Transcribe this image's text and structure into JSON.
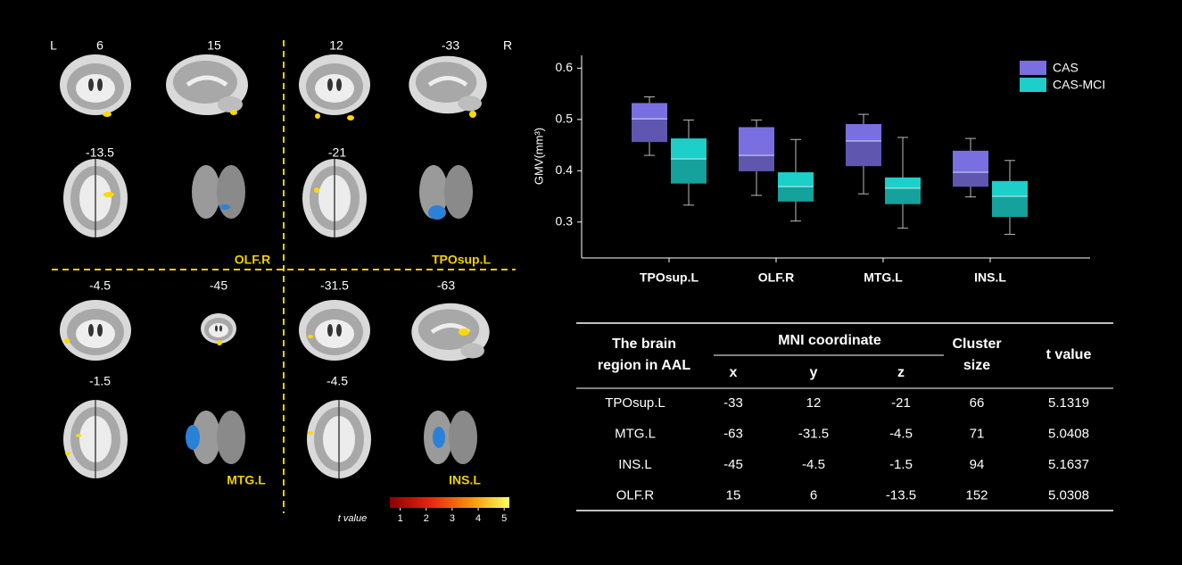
{
  "brain_panel": {
    "hemisphere_labels": [
      "L",
      "R"
    ],
    "slices": [
      "6",
      "15",
      "12",
      "-33",
      "-13.5",
      "-21",
      "-4.5",
      "-45",
      "-31.5",
      "-63",
      "-1.5",
      "-4.5"
    ],
    "regions": [
      "OLF.R",
      "TPOsup.L",
      "MTG.L",
      "INS.L"
    ],
    "colorbar": {
      "label": "t value",
      "lim": [
        0.6,
        5.2
      ],
      "ticks": [
        1,
        2,
        3,
        4,
        5
      ]
    }
  },
  "chart_data": {
    "type": "box",
    "ylabel": "GMV(mm³)",
    "categories": [
      "TPOsup.L",
      "OLF.R",
      "MTG.L",
      "INS.L"
    ],
    "ylim": [
      0.23,
      0.625
    ],
    "yticks": [
      0.3,
      0.4,
      0.5,
      0.6
    ],
    "legend": "top-right",
    "series": [
      {
        "name": "CAS",
        "color": "#7a6fe0",
        "values": [
          {
            "min": 0.43,
            "q1": 0.456,
            "median": 0.501,
            "q3": 0.532,
            "max": 0.544
          },
          {
            "min": 0.352,
            "q1": 0.399,
            "median": 0.43,
            "q3": 0.485,
            "max": 0.499
          },
          {
            "min": 0.355,
            "q1": 0.409,
            "median": 0.458,
            "q3": 0.491,
            "max": 0.51
          },
          {
            "min": 0.349,
            "q1": 0.369,
            "median": 0.397,
            "q3": 0.439,
            "max": 0.463
          }
        ]
      },
      {
        "name": "CAS-MCI",
        "color": "#1ccfc8",
        "values": [
          {
            "min": 0.333,
            "q1": 0.375,
            "median": 0.423,
            "q3": 0.463,
            "max": 0.499
          },
          {
            "min": 0.302,
            "q1": 0.34,
            "median": 0.369,
            "q3": 0.397,
            "max": 0.461
          },
          {
            "min": 0.288,
            "q1": 0.335,
            "median": 0.366,
            "q3": 0.387,
            "max": 0.465
          },
          {
            "min": 0.276,
            "q1": 0.31,
            "median": 0.35,
            "q3": 0.38,
            "max": 0.42
          }
        ]
      }
    ]
  },
  "table": {
    "header": {
      "region": [
        "The brain",
        "region in AAL"
      ],
      "mni": "MNI coordinate",
      "axes": [
        "x",
        "y",
        "z"
      ],
      "cluster": [
        "Cluster",
        "size"
      ],
      "t": "t value"
    },
    "rows": [
      [
        "TPOsup.L",
        "-33",
        "12",
        "-21",
        "66",
        "5.1319"
      ],
      [
        "MTG.L",
        "-63",
        "-31.5",
        "-4.5",
        "71",
        "5.0408"
      ],
      [
        "INS.L",
        "-45",
        "-4.5",
        "-1.5",
        "94",
        "5.1637"
      ],
      [
        "OLF.R",
        "15",
        "6",
        "-13.5",
        "152",
        "5.0308"
      ]
    ]
  }
}
